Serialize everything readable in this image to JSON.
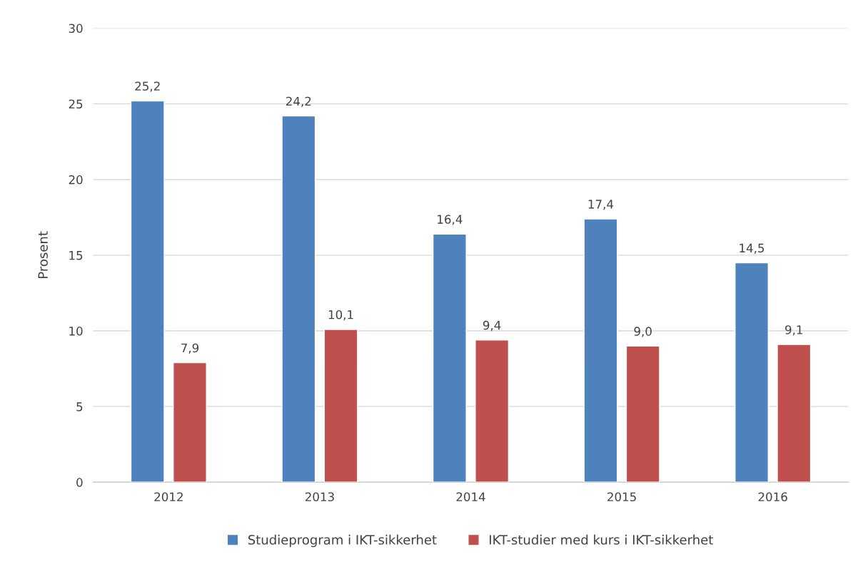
{
  "chart_data": {
    "type": "bar",
    "ylabel": "Prosent",
    "categories": [
      "2012",
      "2013",
      "2014",
      "2015",
      "2016"
    ],
    "series": [
      {
        "name": "Studieprogram i IKT-sikkerhet",
        "color": "#4f81bd",
        "values": [
          25.2,
          24.2,
          16.4,
          17.4,
          14.5
        ],
        "value_labels": [
          "25,2",
          "24,2",
          "16,4",
          "17,4",
          "14,5"
        ]
      },
      {
        "name": "IKT-studier med kurs i IKT-sikkerhet",
        "color": "#c0504d",
        "values": [
          7.9,
          10.1,
          9.4,
          9.0,
          9.1
        ],
        "value_labels": [
          "7,9",
          "10,1",
          "9,4",
          "9,0",
          "9,1"
        ]
      }
    ],
    "ylim": [
      0,
      30
    ],
    "yticks": [
      0,
      5,
      10,
      15,
      20,
      25,
      30
    ],
    "grid": "y",
    "legend": "bottom"
  }
}
